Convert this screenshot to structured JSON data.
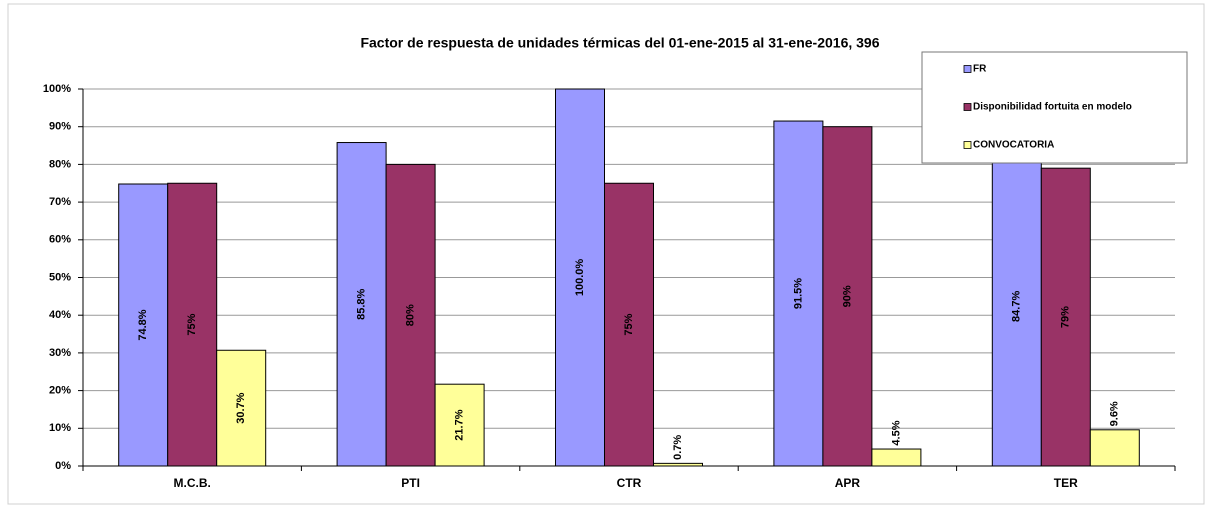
{
  "chart_data": {
    "type": "bar",
    "title": "Factor de respuesta de unidades térmicas del 01-ene-2015 al 31-ene-2016, 396",
    "categories": [
      "M.C.B.",
      "PTI",
      "CTR",
      "APR",
      "TER"
    ],
    "series": [
      {
        "name": "FR",
        "color": "#9999ff",
        "values": [
          74.8,
          85.8,
          100.0,
          91.5,
          84.7
        ],
        "value_labels": [
          "74.8%",
          "85.8%",
          "100.0%",
          "91.5%",
          "84.7%"
        ]
      },
      {
        "name": "Disponibilidad fortuita en modelo",
        "color": "#993366",
        "values": [
          75,
          80,
          75,
          90,
          79
        ],
        "value_labels": [
          "75%",
          "80%",
          "75%",
          "90%",
          "79%"
        ]
      },
      {
        "name": "CONVOCATORIA",
        "color": "#ffff99",
        "values": [
          30.7,
          21.7,
          0.7,
          4.5,
          9.6
        ],
        "value_labels": [
          "30.7%",
          "21.7%",
          "0.7%",
          "4.5%",
          "9.6%"
        ]
      }
    ],
    "ylim": [
      0,
      100
    ],
    "yticks": [
      {
        "value": 0,
        "label": "0%"
      },
      {
        "value": 10,
        "label": "10%"
      },
      {
        "value": 20,
        "label": "20%"
      },
      {
        "value": 30,
        "label": "30%"
      },
      {
        "value": 40,
        "label": "40%"
      },
      {
        "value": 50,
        "label": "50%"
      },
      {
        "value": 60,
        "label": "60%"
      },
      {
        "value": 70,
        "label": "70%"
      },
      {
        "value": 80,
        "label": "80%"
      },
      {
        "value": 90,
        "label": "90%"
      },
      {
        "value": 100,
        "label": "100%"
      }
    ],
    "grid": true,
    "legend": "upper right"
  }
}
